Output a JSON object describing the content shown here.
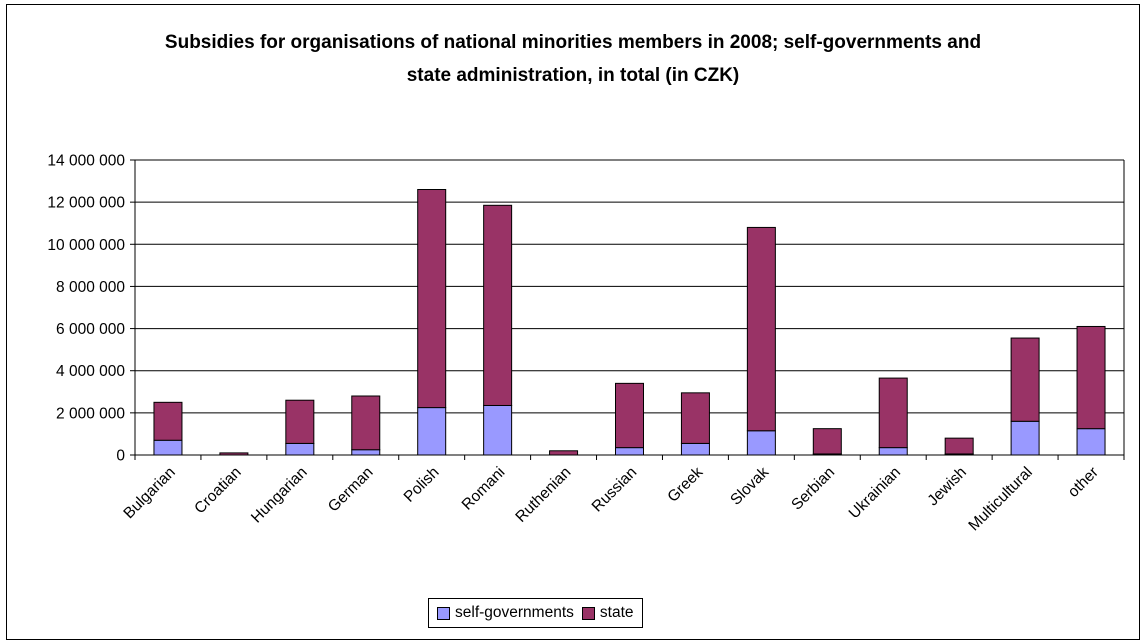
{
  "chart_data": {
    "type": "bar",
    "stacked": true,
    "title_lines": [
      "Subsidies for organisations of national minorities members in 2008; self-governments and",
      "state administration, in total (in CZK)"
    ],
    "categories": [
      "Bulgarian",
      "Croatian",
      "Hungarian",
      "German",
      "Polish",
      "Romani",
      "Ruthenian",
      "Russian",
      "Greek",
      "Slovak",
      "Serbian",
      "Ukrainian",
      "Jewish",
      "Multicultural",
      "other"
    ],
    "series": [
      {
        "name": "self-governments",
        "color": "#9999ff",
        "values": [
          700000,
          0,
          550000,
          250000,
          2250000,
          2350000,
          0,
          350000,
          550000,
          1150000,
          50000,
          350000,
          50000,
          1600000,
          1250000
        ]
      },
      {
        "name": "state",
        "color": "#993366",
        "values": [
          1800000,
          100000,
          2050000,
          2550000,
          10350000,
          9500000,
          200000,
          3050000,
          2400000,
          9650000,
          1200000,
          3300000,
          750000,
          3950000,
          4850000
        ]
      }
    ],
    "y_ticks": [
      "0",
      "2 000 000",
      "4 000 000",
      "6 000 000",
      "8 000 000",
      "10 000 000",
      "12 000 000",
      "14 000 000"
    ],
    "ylim": [
      0,
      14000000
    ],
    "grid": true,
    "legend_position": "bottom"
  }
}
